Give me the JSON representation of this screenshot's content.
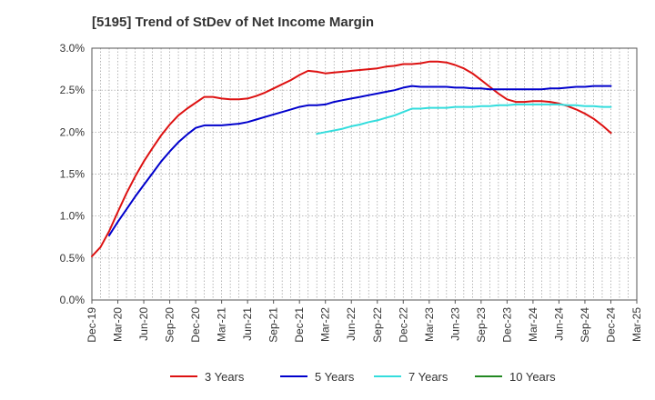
{
  "chart_data": {
    "type": "line",
    "title": "[5195]  Trend of StDev of Net Income Margin",
    "xlabel": "",
    "ylabel": "",
    "y_unit": "%",
    "ylim": [
      0.0,
      3.0
    ],
    "y_ticks": [
      0.0,
      0.5,
      1.0,
      1.5,
      2.0,
      2.5,
      3.0
    ],
    "y_tick_labels": [
      "0.0%",
      "0.5%",
      "1.0%",
      "1.5%",
      "2.0%",
      "2.5%",
      "3.0%"
    ],
    "x_tick_labels": [
      "Dec-19",
      "Mar-20",
      "Jun-20",
      "Sep-20",
      "Dec-20",
      "Mar-21",
      "Jun-21",
      "Sep-21",
      "Dec-21",
      "Mar-22",
      "Jun-22",
      "Sep-22",
      "Dec-22",
      "Mar-23",
      "Jun-23",
      "Sep-23",
      "Dec-23",
      "Mar-24",
      "Jun-24",
      "Sep-24",
      "Dec-24",
      "Mar-25"
    ],
    "xlim": [
      "Dec-19",
      "Mar-25"
    ],
    "grid": true,
    "legend_position": "bottom",
    "series": [
      {
        "name": "3 Years",
        "color": "#dd1111",
        "points": [
          [
            "Dec-19",
            0.52
          ],
          [
            "Jan-20",
            0.63
          ],
          [
            "Feb-20",
            0.82
          ],
          [
            "Mar-20",
            1.05
          ],
          [
            "Apr-20",
            1.27
          ],
          [
            "May-20",
            1.47
          ],
          [
            "Jun-20",
            1.65
          ],
          [
            "Jul-20",
            1.81
          ],
          [
            "Aug-20",
            1.96
          ],
          [
            "Sep-20",
            2.09
          ],
          [
            "Oct-20",
            2.2
          ],
          [
            "Nov-20",
            2.28
          ],
          [
            "Dec-20",
            2.35
          ],
          [
            "Jan-21",
            2.42
          ],
          [
            "Feb-21",
            2.42
          ],
          [
            "Mar-21",
            2.4
          ],
          [
            "Apr-21",
            2.39
          ],
          [
            "May-21",
            2.39
          ],
          [
            "Jun-21",
            2.4
          ],
          [
            "Jul-21",
            2.43
          ],
          [
            "Aug-21",
            2.47
          ],
          [
            "Sep-21",
            2.52
          ],
          [
            "Oct-21",
            2.57
          ],
          [
            "Nov-21",
            2.62
          ],
          [
            "Dec-21",
            2.68
          ],
          [
            "Jan-22",
            2.73
          ],
          [
            "Feb-22",
            2.72
          ],
          [
            "Mar-22",
            2.7
          ],
          [
            "Apr-22",
            2.71
          ],
          [
            "May-22",
            2.72
          ],
          [
            "Jun-22",
            2.73
          ],
          [
            "Jul-22",
            2.74
          ],
          [
            "Aug-22",
            2.75
          ],
          [
            "Sep-22",
            2.76
          ],
          [
            "Oct-22",
            2.78
          ],
          [
            "Nov-22",
            2.79
          ],
          [
            "Dec-22",
            2.81
          ],
          [
            "Jan-23",
            2.81
          ],
          [
            "Feb-23",
            2.82
          ],
          [
            "Mar-23",
            2.84
          ],
          [
            "Apr-23",
            2.84
          ],
          [
            "May-23",
            2.83
          ],
          [
            "Jun-23",
            2.8
          ],
          [
            "Jul-23",
            2.76
          ],
          [
            "Aug-23",
            2.7
          ],
          [
            "Sep-23",
            2.62
          ],
          [
            "Oct-23",
            2.54
          ],
          [
            "Nov-23",
            2.46
          ],
          [
            "Dec-23",
            2.39
          ],
          [
            "Jan-24",
            2.36
          ],
          [
            "Feb-24",
            2.36
          ],
          [
            "Mar-24",
            2.37
          ],
          [
            "Apr-24",
            2.37
          ],
          [
            "May-24",
            2.36
          ],
          [
            "Jun-24",
            2.34
          ],
          [
            "Jul-24",
            2.31
          ],
          [
            "Aug-24",
            2.27
          ],
          [
            "Sep-24",
            2.22
          ],
          [
            "Oct-24",
            2.16
          ],
          [
            "Nov-24",
            2.08
          ],
          [
            "Dec-24",
            1.99
          ]
        ]
      },
      {
        "name": "5 Years",
        "color": "#0000cc",
        "points": [
          [
            "Feb-20",
            0.77
          ],
          [
            "Mar-20",
            0.93
          ],
          [
            "Apr-20",
            1.08
          ],
          [
            "May-20",
            1.23
          ],
          [
            "Jun-20",
            1.37
          ],
          [
            "Jul-20",
            1.51
          ],
          [
            "Aug-20",
            1.65
          ],
          [
            "Sep-20",
            1.77
          ],
          [
            "Oct-20",
            1.88
          ],
          [
            "Nov-20",
            1.97
          ],
          [
            "Dec-20",
            2.05
          ],
          [
            "Jan-21",
            2.08
          ],
          [
            "Feb-21",
            2.08
          ],
          [
            "Mar-21",
            2.08
          ],
          [
            "Apr-21",
            2.09
          ],
          [
            "May-21",
            2.1
          ],
          [
            "Jun-21",
            2.12
          ],
          [
            "Jul-21",
            2.15
          ],
          [
            "Aug-21",
            2.18
          ],
          [
            "Sep-21",
            2.21
          ],
          [
            "Oct-21",
            2.24
          ],
          [
            "Nov-21",
            2.27
          ],
          [
            "Dec-21",
            2.3
          ],
          [
            "Jan-22",
            2.32
          ],
          [
            "Feb-22",
            2.32
          ],
          [
            "Mar-22",
            2.33
          ],
          [
            "Apr-22",
            2.36
          ],
          [
            "May-22",
            2.38
          ],
          [
            "Jun-22",
            2.4
          ],
          [
            "Jul-22",
            2.42
          ],
          [
            "Aug-22",
            2.44
          ],
          [
            "Sep-22",
            2.46
          ],
          [
            "Oct-22",
            2.48
          ],
          [
            "Nov-22",
            2.5
          ],
          [
            "Dec-22",
            2.53
          ],
          [
            "Jan-23",
            2.55
          ],
          [
            "Feb-23",
            2.54
          ],
          [
            "Mar-23",
            2.54
          ],
          [
            "Apr-23",
            2.54
          ],
          [
            "May-23",
            2.54
          ],
          [
            "Jun-23",
            2.53
          ],
          [
            "Jul-23",
            2.53
          ],
          [
            "Aug-23",
            2.52
          ],
          [
            "Sep-23",
            2.52
          ],
          [
            "Oct-23",
            2.51
          ],
          [
            "Nov-23",
            2.51
          ],
          [
            "Dec-23",
            2.51
          ],
          [
            "Jan-24",
            2.51
          ],
          [
            "Feb-24",
            2.51
          ],
          [
            "Mar-24",
            2.51
          ],
          [
            "Apr-24",
            2.51
          ],
          [
            "May-24",
            2.52
          ],
          [
            "Jun-24",
            2.52
          ],
          [
            "Jul-24",
            2.53
          ],
          [
            "Aug-24",
            2.54
          ],
          [
            "Sep-24",
            2.54
          ],
          [
            "Oct-24",
            2.55
          ],
          [
            "Nov-24",
            2.55
          ],
          [
            "Dec-24",
            2.55
          ]
        ]
      },
      {
        "name": "7 Years",
        "color": "#33dddd",
        "points": [
          [
            "Feb-22",
            1.98
          ],
          [
            "Mar-22",
            2.0
          ],
          [
            "Apr-22",
            2.02
          ],
          [
            "May-22",
            2.04
          ],
          [
            "Jun-22",
            2.07
          ],
          [
            "Jul-22",
            2.09
          ],
          [
            "Aug-22",
            2.12
          ],
          [
            "Sep-22",
            2.14
          ],
          [
            "Oct-22",
            2.17
          ],
          [
            "Nov-22",
            2.2
          ],
          [
            "Dec-22",
            2.24
          ],
          [
            "Jan-23",
            2.28
          ],
          [
            "Feb-23",
            2.28
          ],
          [
            "Mar-23",
            2.29
          ],
          [
            "Apr-23",
            2.29
          ],
          [
            "May-23",
            2.29
          ],
          [
            "Jun-23",
            2.3
          ],
          [
            "Jul-23",
            2.3
          ],
          [
            "Aug-23",
            2.3
          ],
          [
            "Sep-23",
            2.31
          ],
          [
            "Oct-23",
            2.31
          ],
          [
            "Nov-23",
            2.32
          ],
          [
            "Dec-23",
            2.32
          ],
          [
            "Jan-24",
            2.33
          ],
          [
            "Feb-24",
            2.33
          ],
          [
            "Mar-24",
            2.33
          ],
          [
            "Apr-24",
            2.33
          ],
          [
            "May-24",
            2.33
          ],
          [
            "Jun-24",
            2.33
          ],
          [
            "Jul-24",
            2.32
          ],
          [
            "Aug-24",
            2.32
          ],
          [
            "Sep-24",
            2.31
          ],
          [
            "Oct-24",
            2.31
          ],
          [
            "Nov-24",
            2.3
          ],
          [
            "Dec-24",
            2.3
          ]
        ]
      },
      {
        "name": "10 Years",
        "color": "#228822",
        "points": []
      }
    ]
  }
}
